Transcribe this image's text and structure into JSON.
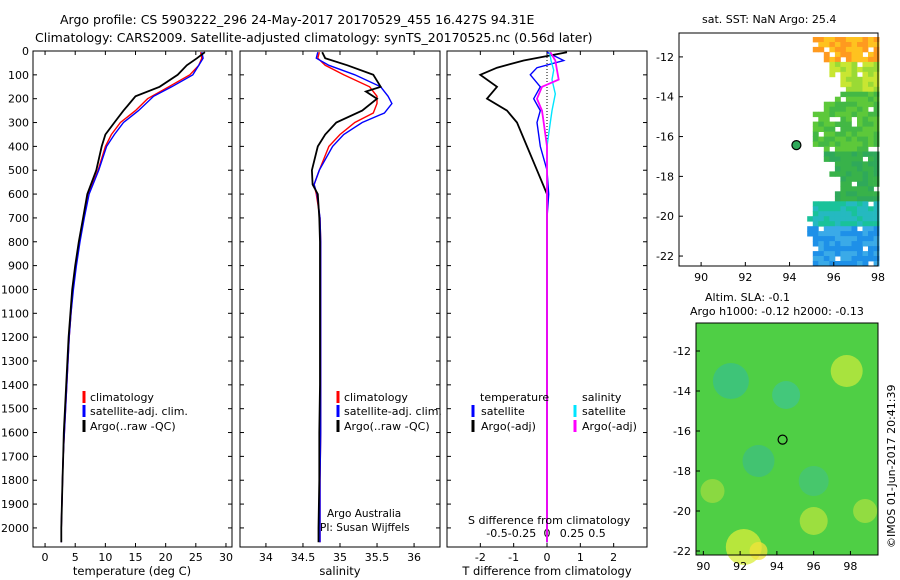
{
  "title": {
    "line1": "Argo profile: CS 5903222_296 24-May-2017 20170529_455 16.427S 94.31E",
    "line2": "Climatology: CARS2009. Satellite-adjusted climatology: synTS_20170525.nc (0.56d later)"
  },
  "colors": {
    "climatology": "#ff0000",
    "satellite": "#0000ff",
    "argo": "#000000",
    "sal_satellite": "#00e5ff",
    "sal_argo": "#ff00ff"
  },
  "depth_ticks": [
    0,
    100,
    200,
    300,
    400,
    500,
    600,
    700,
    800,
    900,
    1000,
    1100,
    1200,
    1300,
    1400,
    1500,
    1600,
    1700,
    1800,
    1900,
    2000
  ],
  "chart_data": [
    {
      "type": "line",
      "name": "temperature",
      "xlabel": "temperature (deg C)",
      "ylabel": "depth",
      "xlim": [
        -2,
        31
      ],
      "ylim": [
        2080,
        0
      ],
      "xticks": [
        0,
        5,
        10,
        15,
        20,
        25,
        30
      ],
      "legend": [
        "climatology",
        "satellite-adj. clim.",
        "Argo(..raw -QC)"
      ],
      "series": [
        {
          "name": "climatology",
          "color": "#ff0000",
          "points": [
            [
              25.8,
              5
            ],
            [
              26,
              30
            ],
            [
              25.5,
              60
            ],
            [
              24,
              100
            ],
            [
              20.5,
              150
            ],
            [
              17,
              200
            ],
            [
              15,
              250
            ],
            [
              12.5,
              300
            ],
            [
              11,
              350
            ],
            [
              10,
              400
            ],
            [
              8.8,
              500
            ],
            [
              7.2,
              600
            ],
            [
              6.4,
              700
            ],
            [
              5.7,
              800
            ],
            [
              5.1,
              900
            ],
            [
              4.6,
              1000
            ],
            [
              4.3,
              1100
            ],
            [
              4,
              1200
            ],
            [
              3.8,
              1300
            ],
            [
              3.6,
              1400
            ],
            [
              3.4,
              1500
            ],
            [
              3.2,
              1600
            ],
            [
              3,
              1700
            ],
            [
              2.9,
              1800
            ],
            [
              2.8,
              1900
            ],
            [
              2.7,
              2000
            ],
            [
              2.7,
              2060
            ]
          ]
        },
        {
          "name": "satellite",
          "color": "#0000ff",
          "points": [
            [
              26,
              5
            ],
            [
              26.2,
              30
            ],
            [
              25.5,
              60
            ],
            [
              24.5,
              100
            ],
            [
              21,
              150
            ],
            [
              18,
              190
            ],
            [
              15.5,
              250
            ],
            [
              13,
              300
            ],
            [
              11.5,
              350
            ],
            [
              10.2,
              400
            ],
            [
              8.9,
              500
            ],
            [
              7.3,
              600
            ],
            [
              6.5,
              700
            ],
            [
              5.8,
              800
            ],
            [
              5.2,
              900
            ],
            [
              4.7,
              1000
            ],
            [
              4.3,
              1100
            ],
            [
              4,
              1200
            ],
            [
              3.8,
              1300
            ],
            [
              3.6,
              1400
            ],
            [
              3.4,
              1500
            ],
            [
              3.2,
              1600
            ],
            [
              3,
              1700
            ],
            [
              2.9,
              1800
            ],
            [
              2.8,
              1900
            ],
            [
              2.7,
              2000
            ],
            [
              2.7,
              2060
            ]
          ]
        },
        {
          "name": "Argo",
          "color": "#000000",
          "points": [
            [
              26.5,
              5
            ],
            [
              25.2,
              30
            ],
            [
              23.5,
              60
            ],
            [
              22,
              100
            ],
            [
              19,
              150
            ],
            [
              15,
              190
            ],
            [
              13,
              250
            ],
            [
              11.5,
              300
            ],
            [
              10,
              350
            ],
            [
              9.4,
              400
            ],
            [
              8.5,
              500
            ],
            [
              7,
              600
            ],
            [
              6.3,
              700
            ],
            [
              5.6,
              800
            ],
            [
              5,
              900
            ],
            [
              4.5,
              1000
            ],
            [
              4.2,
              1100
            ],
            [
              3.9,
              1200
            ],
            [
              3.7,
              1300
            ],
            [
              3.5,
              1400
            ],
            [
              3.3,
              1500
            ],
            [
              3.1,
              1600
            ],
            [
              3,
              1700
            ],
            [
              2.9,
              1800
            ],
            [
              2.8,
              1900
            ],
            [
              2.7,
              2000
            ],
            [
              2.7,
              2060
            ]
          ]
        }
      ]
    },
    {
      "type": "line",
      "name": "salinity",
      "xlabel": "salinity",
      "xlim": [
        33.65,
        36.35
      ],
      "ylim": [
        2080,
        0
      ],
      "xticks": [
        34,
        34.5,
        35,
        35.5,
        36
      ],
      "legend": [
        "climatology",
        "satellite-adj. clim.",
        "Argo(..raw -QC)"
      ],
      "annotations": [
        "Argo Australia",
        "PI: Susan Wijffels"
      ],
      "series": [
        {
          "name": "climatology",
          "color": "#ff0000",
          "points": [
            [
              34.72,
              5
            ],
            [
              34.7,
              30
            ],
            [
              34.8,
              60
            ],
            [
              35.05,
              100
            ],
            [
              35.4,
              150
            ],
            [
              35.5,
              190
            ],
            [
              35.5,
              220
            ],
            [
              35.45,
              260
            ],
            [
              35.2,
              300
            ],
            [
              35,
              350
            ],
            [
              34.85,
              400
            ],
            [
              34.72,
              500
            ],
            [
              34.65,
              560
            ],
            [
              34.68,
              600
            ],
            [
              34.73,
              700
            ],
            [
              34.74,
              800
            ],
            [
              34.74,
              1000
            ],
            [
              34.74,
              1200
            ],
            [
              34.74,
              1400
            ],
            [
              34.74,
              1600
            ],
            [
              34.73,
              1800
            ],
            [
              34.73,
              2000
            ],
            [
              34.73,
              2060
            ]
          ]
        },
        {
          "name": "satellite",
          "color": "#0000ff",
          "points": [
            [
              34.7,
              5
            ],
            [
              34.68,
              30
            ],
            [
              34.85,
              60
            ],
            [
              35.2,
              100
            ],
            [
              35.55,
              150
            ],
            [
              35.65,
              190
            ],
            [
              35.7,
              220
            ],
            [
              35.6,
              260
            ],
            [
              35.3,
              300
            ],
            [
              35.05,
              350
            ],
            [
              34.9,
              400
            ],
            [
              34.72,
              500
            ],
            [
              34.65,
              560
            ],
            [
              34.69,
              600
            ],
            [
              34.73,
              700
            ],
            [
              34.74,
              800
            ],
            [
              34.74,
              1000
            ],
            [
              34.74,
              1200
            ],
            [
              34.74,
              1400
            ],
            [
              34.74,
              1600
            ],
            [
              34.73,
              1800
            ],
            [
              34.73,
              2000
            ],
            [
              34.73,
              2060
            ]
          ]
        },
        {
          "name": "Argo",
          "color": "#000000",
          "points": [
            [
              34.76,
              5
            ],
            [
              34.8,
              30
            ],
            [
              35.1,
              60
            ],
            [
              35.45,
              100
            ],
            [
              35.55,
              150
            ],
            [
              35.35,
              170
            ],
            [
              35.5,
              200
            ],
            [
              35.3,
              250
            ],
            [
              34.95,
              300
            ],
            [
              34.8,
              350
            ],
            [
              34.7,
              400
            ],
            [
              34.62,
              500
            ],
            [
              34.63,
              560
            ],
            [
              34.7,
              600
            ],
            [
              34.72,
              700
            ],
            [
              34.73,
              800
            ],
            [
              34.73,
              1000
            ],
            [
              34.73,
              1200
            ],
            [
              34.73,
              1400
            ],
            [
              34.72,
              1600
            ],
            [
              34.72,
              1800
            ],
            [
              34.71,
              2000
            ],
            [
              34.71,
              2060
            ]
          ]
        }
      ]
    },
    {
      "type": "line",
      "name": "differences",
      "xlabel": "T difference from climatology",
      "xlabel_top": "S difference from climatology",
      "xlim": [
        -3,
        3
      ],
      "ylim": [
        2080,
        0
      ],
      "xticks": [
        -2,
        -1,
        0,
        1,
        2
      ],
      "xticks_top": [
        "-0.5",
        "-0.25",
        "0",
        "0.25",
        "0.5"
      ],
      "legend_temperature": {
        "title": "temperature",
        "satellite": "satellite",
        "argo": "Argo(-adj)"
      },
      "legend_salinity": {
        "title": "salinity",
        "satellite": "satellite",
        "argo": "Argo(-adj)"
      },
      "series": [
        {
          "name": "T satellite",
          "color": "#0000ff",
          "points": [
            [
              0,
              5
            ],
            [
              0.5,
              40
            ],
            [
              -0.3,
              70
            ],
            [
              -0.5,
              100
            ],
            [
              -0.2,
              150
            ],
            [
              -0.4,
              200
            ],
            [
              -0.2,
              250
            ],
            [
              -0.3,
              300
            ],
            [
              -0.2,
              400
            ],
            [
              0,
              500
            ],
            [
              0.05,
              600
            ],
            [
              0,
              700
            ],
            [
              0,
              1000
            ],
            [
              0,
              1400
            ],
            [
              0,
              1800
            ],
            [
              0,
              2060
            ]
          ]
        },
        {
          "name": "T Argo",
          "color": "#000000",
          "points": [
            [
              0.6,
              5
            ],
            [
              -0.7,
              40
            ],
            [
              -1.5,
              70
            ],
            [
              -2,
              100
            ],
            [
              -1.5,
              150
            ],
            [
              -1.8,
              200
            ],
            [
              -1.2,
              250
            ],
            [
              -0.9,
              300
            ],
            [
              -0.6,
              400
            ],
            [
              -0.3,
              500
            ],
            [
              0,
              600
            ],
            [
              0,
              700
            ],
            [
              0,
              1000
            ],
            [
              0,
              1400
            ],
            [
              0,
              1800
            ],
            [
              0,
              2060
            ]
          ]
        },
        {
          "name": "S satellite",
          "color": "#00e5ff",
          "points": [
            [
              0.08,
              5
            ],
            [
              0.12,
              40
            ],
            [
              0.2,
              80
            ],
            [
              0.15,
              120
            ],
            [
              0.25,
              180
            ],
            [
              0.15,
              250
            ],
            [
              0.1,
              300
            ],
            [
              0,
              400
            ],
            [
              0,
              500
            ],
            [
              0,
              700
            ],
            [
              0,
              1000
            ],
            [
              0,
              1400
            ],
            [
              0,
              1800
            ],
            [
              0,
              2060
            ]
          ]
        },
        {
          "name": "S Argo",
          "color": "#ff00ff",
          "points": [
            [
              0.1,
              5
            ],
            [
              0.25,
              40
            ],
            [
              0.3,
              80
            ],
            [
              0.35,
              120
            ],
            [
              -0.15,
              150
            ],
            [
              -0.3,
              200
            ],
            [
              -0.15,
              250
            ],
            [
              -0.1,
              300
            ],
            [
              0,
              400
            ],
            [
              0,
              500
            ],
            [
              0,
              700
            ],
            [
              0,
              1000
            ],
            [
              0,
              1400
            ],
            [
              0,
              1800
            ],
            [
              0,
              2060
            ]
          ]
        }
      ]
    },
    {
      "type": "heatmap",
      "name": "sst-map",
      "title": "sat. SST: NaN Argo: 25.4",
      "xlim": [
        89,
        98
      ],
      "ylim": [
        -22.5,
        -10.8
      ],
      "xticks": [
        90,
        92,
        94,
        96,
        98
      ],
      "yticks": [
        -12,
        -14,
        -16,
        -18,
        -20,
        -22
      ],
      "argo_position": [
        94.31,
        -16.43
      ]
    },
    {
      "type": "heatmap",
      "name": "sla-map",
      "title_line1": "Altim. SLA: -0.1",
      "title_line2": "Argo h1000: -0.12 h2000: -0.13",
      "xlim": [
        89.6,
        99.5
      ],
      "ylim": [
        -22.2,
        -10.6
      ],
      "xticks": [
        90,
        92,
        94,
        96,
        98
      ],
      "yticks": [
        -12,
        -14,
        -16,
        -18,
        -20,
        -22
      ],
      "argo_position": [
        94.31,
        -16.43
      ],
      "credit": "©IMOS 01-Jun-2017 20:41:39"
    }
  ]
}
